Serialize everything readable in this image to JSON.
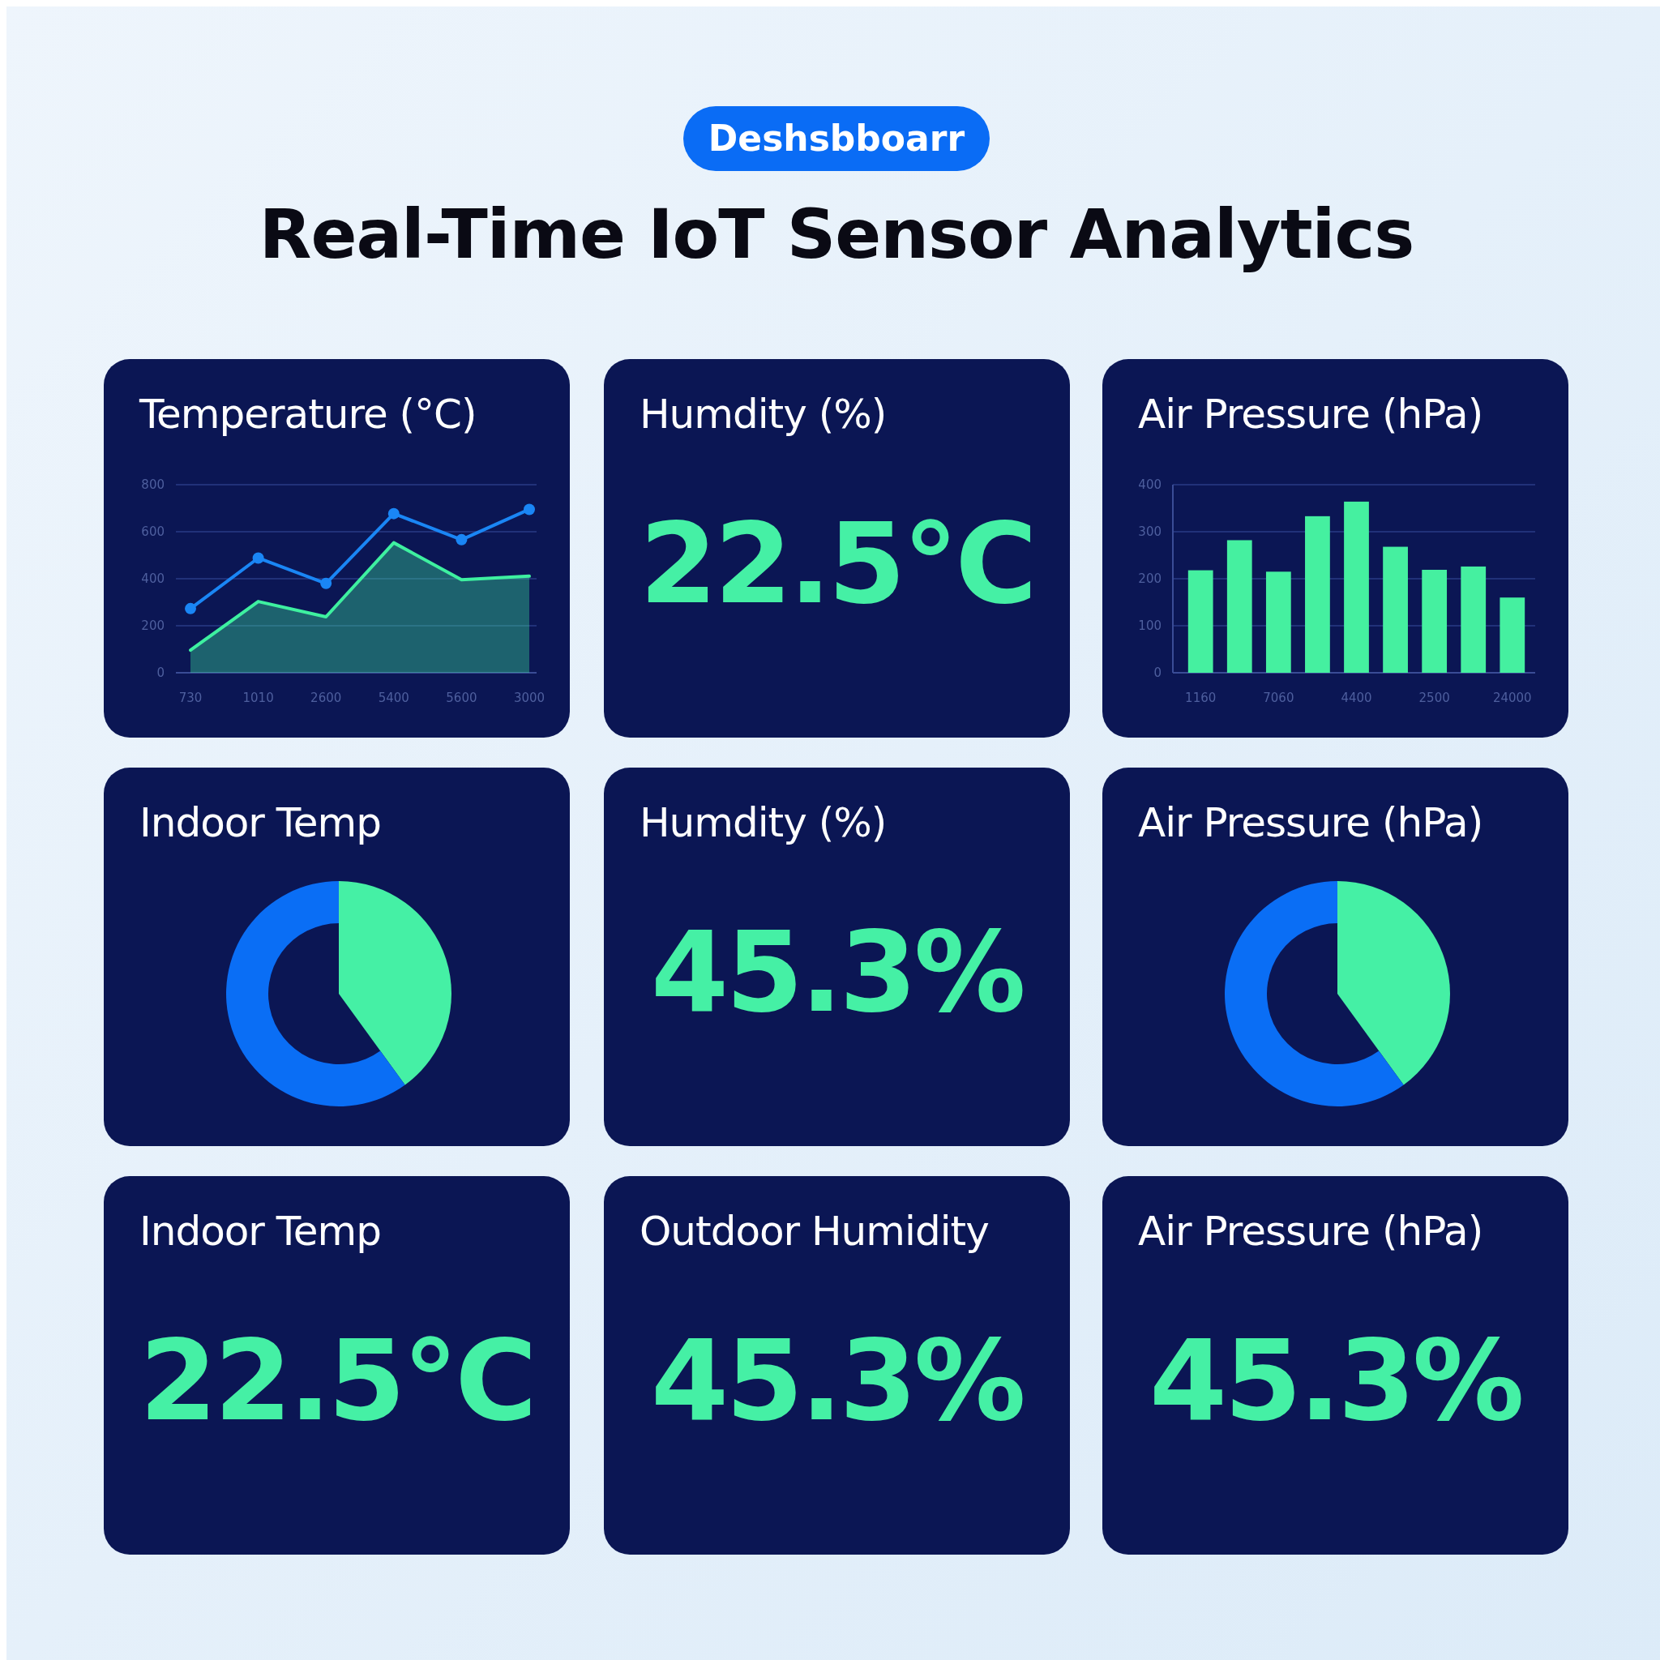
{
  "chart_data": [
    {
      "type": "other",
      "title": "Real-Time IoT Sensor Analytics",
      "annotations": [
        "Deshsbboarr"
      ]
    },
    {
      "type": "line",
      "title": "Temperature (°C)",
      "categories": [
        "730",
        "1010",
        "2600",
        "5400",
        "5600",
        "3000"
      ],
      "ylim": [
        0,
        800
      ],
      "yticks": [
        0,
        200,
        400,
        600,
        800
      ],
      "grid": "y",
      "series": [
        {
          "type": "area",
          "color": "#3ef0a0",
          "marker": "none",
          "values": [
            96,
            303,
            238,
            553,
            396,
            411
          ]
        },
        {
          "type": "line",
          "color": "#1a86f5",
          "marker": "circle",
          "values": [
            273,
            488,
            380,
            677,
            566,
            695
          ]
        }
      ]
    },
    {
      "type": "other",
      "title": "Humdity (%)",
      "annotations": [
        "22.5°C"
      ]
    },
    {
      "type": "bar",
      "title": "Air Pressure (hPa)",
      "categories": [
        "1160",
        null,
        "7060",
        null,
        "4400",
        null,
        "2500",
        null,
        "24000"
      ],
      "values": [
        218,
        282,
        215,
        333,
        364,
        268,
        219,
        226,
        160
      ],
      "color": "#45f0a0",
      "ylim": [
        0,
        400
      ],
      "yticks": [
        0,
        100,
        200,
        300,
        400
      ],
      "grid": "y"
    },
    {
      "type": "pie",
      "title": "Indoor Temp",
      "categories": [
        null,
        null
      ],
      "values": [
        40,
        60
      ],
      "colors": [
        "#45f0a5",
        "#0a6ef5"
      ]
    },
    {
      "type": "other",
      "title": "Humdity (%)",
      "annotations": [
        "45.3%"
      ]
    },
    {
      "type": "pie",
      "title": "Air Pressure (hPa)",
      "categories": [
        null,
        null
      ],
      "values": [
        40,
        60
      ],
      "colors": [
        "#45f0a5",
        "#0a6ef5"
      ]
    },
    {
      "type": "other",
      "title": "Indoor Temp",
      "annotations": [
        "22.5°C"
      ]
    },
    {
      "type": "other",
      "title": "Outdoor Humidity",
      "annotations": [
        "45.3%"
      ]
    },
    {
      "type": "other",
      "title": "Air Pressure (hPa)",
      "annotations": [
        "45.3%"
      ]
    }
  ]
}
